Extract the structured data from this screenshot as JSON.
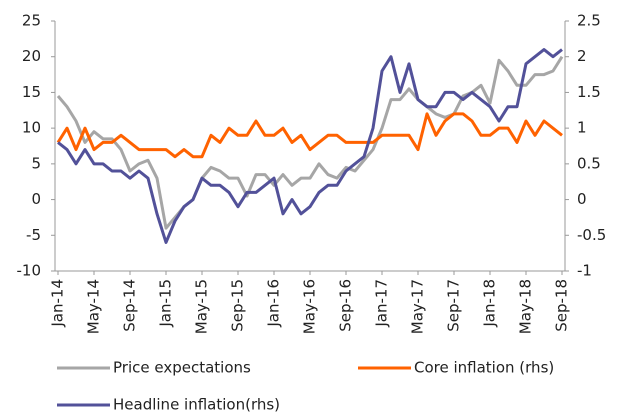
{
  "chart_data": {
    "type": "line",
    "categories": [
      "Jan-14",
      null,
      null,
      null,
      "May-14",
      null,
      null,
      null,
      "Sep-14",
      null,
      null,
      null,
      "Jan-15",
      null,
      null,
      null,
      "May-15",
      null,
      null,
      null,
      "Sep-15",
      null,
      null,
      null,
      "Jan-16",
      null,
      null,
      null,
      "May-16",
      null,
      null,
      null,
      "Sep-16",
      null,
      null,
      null,
      "Jan-17",
      null,
      null,
      null,
      "May-17",
      null,
      null,
      null,
      "Sep-17",
      null,
      null,
      null,
      "Jan-18",
      null,
      null,
      null,
      "May-18",
      null,
      null,
      null,
      "Sep-18"
    ],
    "series": [
      {
        "name": "Price expectations",
        "color": "#a6a6a6",
        "axis": "y",
        "values": [
          14.5,
          13,
          11,
          8,
          9.5,
          8.5,
          8.5,
          7,
          4,
          5,
          5.5,
          3,
          -4,
          -2.5,
          -1,
          0,
          3,
          4.5,
          4,
          3,
          3,
          0.5,
          3.5,
          3.5,
          2,
          3.5,
          2,
          3,
          3,
          5,
          3.5,
          3,
          4.5,
          4,
          5.5,
          7,
          10,
          14,
          14,
          15.5,
          14,
          13,
          12,
          11.5,
          12,
          14.5,
          15,
          16,
          13.5,
          19.5,
          18,
          16,
          16,
          17.5,
          17.5,
          18,
          20
        ]
      },
      {
        "name": "Core inflation (rhs)",
        "color": "#ff6200",
        "axis": "y2",
        "values": [
          0.8,
          1.0,
          0.7,
          1.0,
          0.7,
          0.8,
          0.8,
          0.9,
          0.8,
          0.7,
          0.7,
          0.7,
          0.7,
          0.6,
          0.7,
          0.6,
          0.6,
          0.9,
          0.8,
          1.0,
          0.9,
          0.9,
          1.1,
          0.9,
          0.9,
          1.0,
          0.8,
          0.9,
          0.7,
          0.8,
          0.9,
          0.9,
          0.8,
          0.8,
          0.8,
          0.8,
          0.9,
          0.9,
          0.9,
          0.9,
          0.7,
          1.2,
          0.9,
          1.1,
          1.2,
          1.2,
          1.1,
          0.9,
          0.9,
          1.0,
          1.0,
          0.8,
          1.1,
          0.9,
          1.1,
          1.0,
          0.9
        ]
      },
      {
        "name": "Headline inflation(rhs)",
        "color": "#525199",
        "axis": "y2",
        "values": [
          0.8,
          0.7,
          0.5,
          0.7,
          0.5,
          0.5,
          0.4,
          0.4,
          0.3,
          0.4,
          0.3,
          -0.2,
          -0.6,
          -0.3,
          -0.1,
          0,
          0.3,
          0.2,
          0.2,
          0.1,
          -0.1,
          0.1,
          0.1,
          0.2,
          0.3,
          -0.2,
          0,
          -0.2,
          -0.1,
          0.1,
          0.2,
          0.2,
          0.4,
          0.5,
          0.6,
          1.0,
          1.8,
          2.0,
          1.5,
          1.9,
          1.4,
          1.3,
          1.3,
          1.5,
          1.5,
          1.4,
          1.5,
          1.4,
          1.3,
          1.1,
          1.3,
          1.3,
          1.9,
          2.0,
          2.1,
          2.0,
          2.1
        ]
      }
    ],
    "ylim": [
      -10,
      25
    ],
    "yticks": [
      -10,
      -5,
      0,
      5,
      10,
      15,
      20,
      25
    ],
    "y2lim": [
      -1,
      2.5
    ],
    "y2ticks": [
      -1,
      -0.5,
      0,
      0.5,
      1,
      1.5,
      2,
      2.5
    ]
  }
}
